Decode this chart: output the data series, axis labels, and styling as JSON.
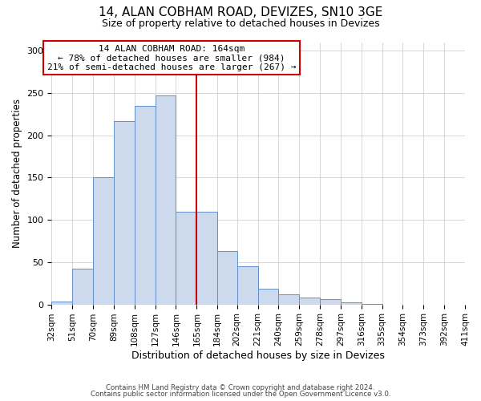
{
  "title_line1": "14, ALAN COBHAM ROAD, DEVIZES, SN10 3GE",
  "title_line2": "Size of property relative to detached houses in Devizes",
  "xlabel": "Distribution of detached houses by size in Devizes",
  "ylabel": "Number of detached properties",
  "bin_edges": [
    32,
    51,
    70,
    89,
    108,
    127,
    146,
    165,
    184,
    202,
    221,
    240,
    259,
    278,
    297,
    316,
    335,
    354,
    373,
    392,
    411
  ],
  "counts": [
    3,
    42,
    150,
    217,
    235,
    247,
    110,
    110,
    63,
    45,
    19,
    12,
    8,
    6,
    2,
    1,
    0,
    0,
    0,
    0
  ],
  "bar_color": "#cdd9ed",
  "bar_edge_color": "#6090c8",
  "vline_x": 165,
  "vline_color": "#cc0000",
  "annotation_title": "14 ALAN COBHAM ROAD: 164sqm",
  "annotation_line2": "← 78% of detached houses are smaller (984)",
  "annotation_line3": "21% of semi-detached houses are larger (267) →",
  "annotation_box_edgecolor": "#cc0000",
  "ylim": [
    0,
    310
  ],
  "yticks": [
    0,
    50,
    100,
    150,
    200,
    250,
    300
  ],
  "background_color": "#ffffff",
  "grid_color": "#c8c8c8",
  "footer_line1": "Contains HM Land Registry data © Crown copyright and database right 2024.",
  "footer_line2": "Contains public sector information licensed under the Open Government Licence v3.0."
}
